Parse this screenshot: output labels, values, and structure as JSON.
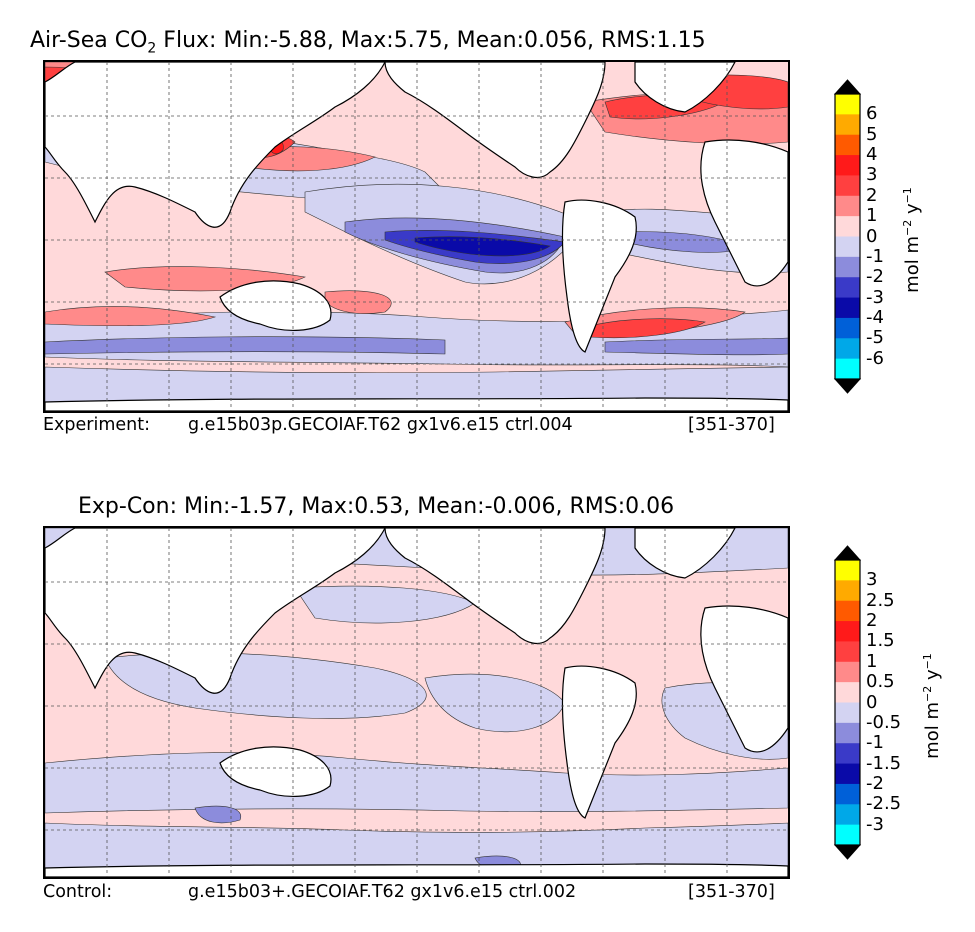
{
  "panel_top": {
    "title_pre": "Air-Sea CO",
    "title_sub": "2",
    "title_post": " Flux: Min:-5.88, Max:5.75, Mean:0.056, RMS:1.15",
    "caption_label": "Experiment:",
    "caption_case": "g.e15b03p.GECOIAF.T62 gx1v6.e15 ctrl.004",
    "caption_years": "[351-370]",
    "colorbar": {
      "ticks": [
        "6",
        "5",
        "4",
        "3",
        "2",
        "1",
        "0",
        "-1",
        "-2",
        "-3",
        "-4",
        "-5",
        "-6"
      ],
      "unit_main": "mol m",
      "unit_exp1": "−2",
      "unit_mid": " y",
      "unit_exp2": "−1",
      "colors": [
        "#ffff00",
        "#ffaa00",
        "#ff5a00",
        "#ff1a1a",
        "#ff4040",
        "#ff8a8a",
        "#ffd9da",
        "#d3d3f2",
        "#8c8cdc",
        "#3a3ac8",
        "#0a0aa8",
        "#0060d8",
        "#00a8e8",
        "#00ffff"
      ],
      "top_arrow_color": "#000000",
      "bottom_arrow_color": "#000000"
    }
  },
  "panel_bottom": {
    "title": "Exp-Con: Min:-1.57, Max:0.53, Mean:-0.006, RMS:0.06",
    "caption_label": "Control:",
    "caption_case": "g.e15b03+.GECOIAF.T62 gx1v6.e15 ctrl.002",
    "caption_years": "[351-370]",
    "colorbar": {
      "ticks": [
        "3",
        "2.5",
        "2",
        "1.5",
        "1",
        "0.5",
        "0",
        "-0.5",
        "-1",
        "-1.5",
        "-2",
        "-2.5",
        "-3"
      ],
      "unit_main": "mol m",
      "unit_exp1": "−2",
      "unit_mid": " y",
      "unit_exp2": "−1",
      "colors": [
        "#ffff00",
        "#ffaa00",
        "#ff5a00",
        "#ff1a1a",
        "#ff4040",
        "#ff8a8a",
        "#ffd9da",
        "#d3d3f2",
        "#8c8cdc",
        "#3a3ac8",
        "#0a0aa8",
        "#0060d8",
        "#00a8e8",
        "#00ffff"
      ]
    }
  },
  "palette": {
    "land": "#ffffff",
    "grid": "#555555",
    "light_pink": "#ffd9da",
    "pink": "#ff8a8a",
    "red": "#ff4040",
    "dark_red": "#ff1a1a",
    "light_blue": "#d3d3f2",
    "blue": "#8c8cdc",
    "dark_blue": "#3a3ac8",
    "navy": "#0a0aa8"
  }
}
